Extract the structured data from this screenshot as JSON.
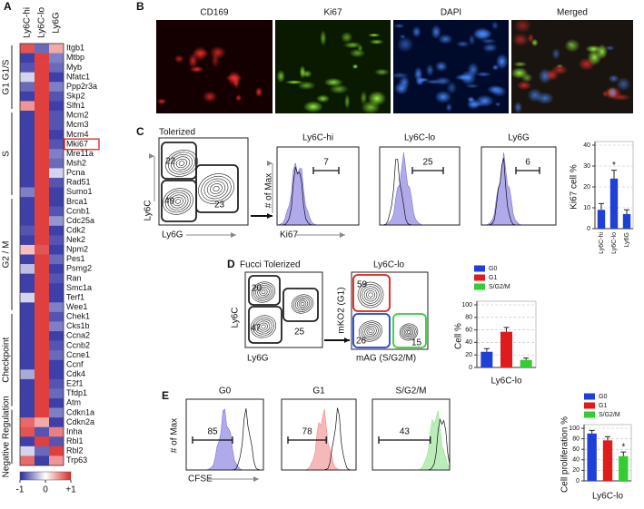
{
  "panel_labels": [
    "A",
    "B",
    "C",
    "D",
    "E"
  ],
  "heatmap": {
    "columns": [
      "Ly6C-hi",
      "Ly6C-lo",
      "Ly6G"
    ],
    "groups": [
      {
        "label": "G1 G1/S",
        "genes": [
          {
            "name": "Itgb1",
            "values": [
              0.8,
              -0.7,
              0.4
            ]
          },
          {
            "name": "Mtbp",
            "values": [
              -0.9,
              0.9,
              -0.6
            ]
          },
          {
            "name": "Myb",
            "values": [
              -0.8,
              0.9,
              -0.7
            ]
          },
          {
            "name": "Nfatc1",
            "values": [
              -0.2,
              0.9,
              -0.9
            ]
          },
          {
            "name": "Ppp2r3a",
            "values": [
              -0.7,
              0.9,
              -0.6
            ]
          },
          {
            "name": "Skp2",
            "values": [
              -0.9,
              0.9,
              -0.8
            ]
          },
          {
            "name": "Slfn1",
            "values": [
              0.5,
              0.9,
              -0.9
            ]
          }
        ]
      },
      {
        "label": "S",
        "genes": [
          {
            "name": "Mcm2",
            "values": [
              -0.9,
              0.9,
              -0.8
            ]
          },
          {
            "name": "Mcm3",
            "values": [
              -0.9,
              0.9,
              -0.8
            ]
          },
          {
            "name": "Mcm4",
            "values": [
              -0.9,
              0.9,
              -0.9
            ]
          },
          {
            "name": "Mki67",
            "values": [
              -0.9,
              0.9,
              -0.8
            ],
            "highlight": true
          },
          {
            "name": "Mre11a",
            "values": [
              -0.9,
              0.9,
              -0.6
            ]
          },
          {
            "name": "Msh2",
            "values": [
              -0.9,
              0.9,
              -0.7
            ]
          },
          {
            "name": "Pcna",
            "values": [
              -0.9,
              0.9,
              -0.2
            ]
          },
          {
            "name": "Rad51",
            "values": [
              -0.9,
              0.9,
              -0.8
            ]
          },
          {
            "name": "Sumo1",
            "values": [
              -0.6,
              0.9,
              -0.9
            ]
          }
        ]
      },
      {
        "label": "G2 / M",
        "genes": [
          {
            "name": "Brca1",
            "values": [
              -0.9,
              0.9,
              -0.9
            ]
          },
          {
            "name": "Ccnb1",
            "values": [
              -0.9,
              0.9,
              -0.8
            ]
          },
          {
            "name": "Cdc25a",
            "values": [
              -0.9,
              0.9,
              -0.5
            ]
          },
          {
            "name": "Cdk2",
            "values": [
              -0.8,
              0.9,
              -0.9
            ]
          },
          {
            "name": "Nek2",
            "values": [
              -0.9,
              0.9,
              -0.8
            ]
          },
          {
            "name": "Npm2",
            "values": [
              0.3,
              0.8,
              -0.9
            ]
          },
          {
            "name": "Pes1",
            "values": [
              -0.9,
              0.9,
              -0.7
            ]
          },
          {
            "name": "Psmg2",
            "values": [
              -0.3,
              0.9,
              -0.9
            ]
          },
          {
            "name": "Ran",
            "values": [
              -0.9,
              0.9,
              -0.8
            ]
          },
          {
            "name": "Smc1a",
            "values": [
              -0.9,
              0.9,
              -0.9
            ]
          },
          {
            "name": "Terf1",
            "values": [
              -0.2,
              0.9,
              -0.9
            ]
          },
          {
            "name": "Wee1",
            "values": [
              -0.9,
              0.9,
              -0.6
            ]
          }
        ]
      },
      {
        "label": "Checkpoint",
        "genes": [
          {
            "name": "Chek1",
            "values": [
              -0.9,
              0.9,
              -0.8
            ]
          },
          {
            "name": "Cks1b",
            "values": [
              -0.9,
              0.9,
              -0.6
            ]
          },
          {
            "name": "Ccna2",
            "values": [
              -0.9,
              0.9,
              -0.9
            ]
          },
          {
            "name": "Ccnb2",
            "values": [
              -0.9,
              0.9,
              -0.8
            ]
          },
          {
            "name": "Ccne1",
            "values": [
              -0.9,
              0.9,
              -0.7
            ]
          },
          {
            "name": "Ccnf",
            "values": [
              -0.9,
              0.9,
              -0.9
            ]
          },
          {
            "name": "Cdk4",
            "values": [
              -0.4,
              0.9,
              -0.9
            ]
          },
          {
            "name": "E2f1",
            "values": [
              -0.9,
              0.9,
              -0.8
            ]
          },
          {
            "name": "Tfdp1",
            "values": [
              -0.9,
              0.9,
              -0.7
            ]
          },
          {
            "name": "Atm",
            "values": [
              -0.9,
              0.9,
              -0.9
            ]
          }
        ]
      },
      {
        "label": "Negative Regulation",
        "genes": [
          {
            "name": "Cdkn1a",
            "values": [
              -0.9,
              0.9,
              -0.6
            ]
          },
          {
            "name": "Cdkn2a",
            "values": [
              0.7,
              0.4,
              -0.9
            ]
          },
          {
            "name": "Inha",
            "values": [
              0.8,
              -0.8,
              0.6
            ]
          },
          {
            "name": "Rbl1",
            "values": [
              -0.9,
              0.9,
              -0.8
            ]
          },
          {
            "name": "Rbl2",
            "values": [
              -0.2,
              -0.7,
              0.9
            ]
          },
          {
            "name": "Trp63",
            "values": [
              0.7,
              -0.9,
              0.5
            ]
          }
        ]
      }
    ],
    "colorbar": {
      "lim": [
        -1,
        1
      ],
      "ticks": [
        -1,
        0,
        {
          "value": 1,
          "label": "+1"
        }
      ],
      "colors": [
        "#2a2a9e",
        "#ffffff",
        "#dc2a2a"
      ]
    }
  },
  "microscopy": {
    "titles": [
      "CD169",
      "Ki67",
      "DAPI",
      "Merged"
    ]
  },
  "flow_c": {
    "title": "Tolerized",
    "gates": [
      "22",
      "49",
      "23"
    ],
    "x_label": "Ly6G",
    "y_label": "Ly6C",
    "hist_y_label": "# of Max",
    "hist_x_label": "Ki67",
    "histograms": [
      {
        "title": "Ly6C-hi",
        "value": "7"
      },
      {
        "title": "Ly6C-lo",
        "value": "25"
      },
      {
        "title": "Ly6G",
        "value": "6"
      }
    ]
  },
  "flow_d": {
    "title": "Fucci Tolerized",
    "gates": [
      "20",
      "47",
      "25"
    ],
    "x_label": "Ly6G",
    "y_label": "Ly6C",
    "sub_title": "Ly6C-lo",
    "sub_gates": [
      "59",
      "26",
      "15"
    ],
    "sub_y_label": "mKO2 (G1)",
    "sub_x_label": "mAG (S/G2/M)"
  },
  "flow_e": {
    "hist_y_label": "# of Max",
    "hist_x_label": "CFSE",
    "histograms": [
      {
        "title": "G0",
        "value": "85"
      },
      {
        "title": "G1",
        "value": "78"
      },
      {
        "title": "S/G2/M",
        "value": "43"
      }
    ]
  },
  "chart_data": [
    {
      "type": "bar",
      "y_label": "Ki67 cell %",
      "categories": [
        "Ly6C-hi",
        "Ly6C-lo",
        "Ly6G"
      ],
      "values": [
        9,
        24,
        7
      ],
      "errors": [
        3,
        4,
        2
      ],
      "colors": [
        "#1f3fd6",
        "#1f3fd6",
        "#1f3fd6"
      ],
      "ylim": [
        0,
        40
      ],
      "yticks": [
        0,
        10,
        20,
        30,
        40
      ],
      "grid": true,
      "legend": false,
      "annotations": [
        {
          "text": "*",
          "category": "Ly6C-lo"
        }
      ]
    },
    {
      "type": "bar",
      "y_label": "Cell %",
      "x_label": "Ly6C-lo",
      "categories": [
        "G0",
        "G1",
        "S/G2/M"
      ],
      "values": [
        25,
        57,
        12
      ],
      "errors": [
        5,
        7,
        3
      ],
      "colors": [
        "#1f3fd6",
        "#e01b1b",
        "#33cc33"
      ],
      "ylim": [
        0,
        100
      ],
      "yticks": [
        0,
        20,
        40,
        60,
        80,
        100
      ],
      "grid": true,
      "legend": true,
      "annotations": []
    },
    {
      "type": "bar",
      "y_label": "Cell proliferation %",
      "x_label": "Ly6C-lo",
      "categories": [
        "G0",
        "G1",
        "S/G2/M"
      ],
      "values": [
        90,
        77,
        47
      ],
      "errors": [
        6,
        7,
        8
      ],
      "colors": [
        "#1f3fd6",
        "#e01b1b",
        "#33cc33"
      ],
      "ylim": [
        0,
        100
      ],
      "yticks": [
        0,
        20,
        40,
        60,
        80,
        100
      ],
      "grid": true,
      "legend": true,
      "annotations": [
        {
          "text": "*",
          "category": "S/G2/M"
        }
      ]
    }
  ]
}
